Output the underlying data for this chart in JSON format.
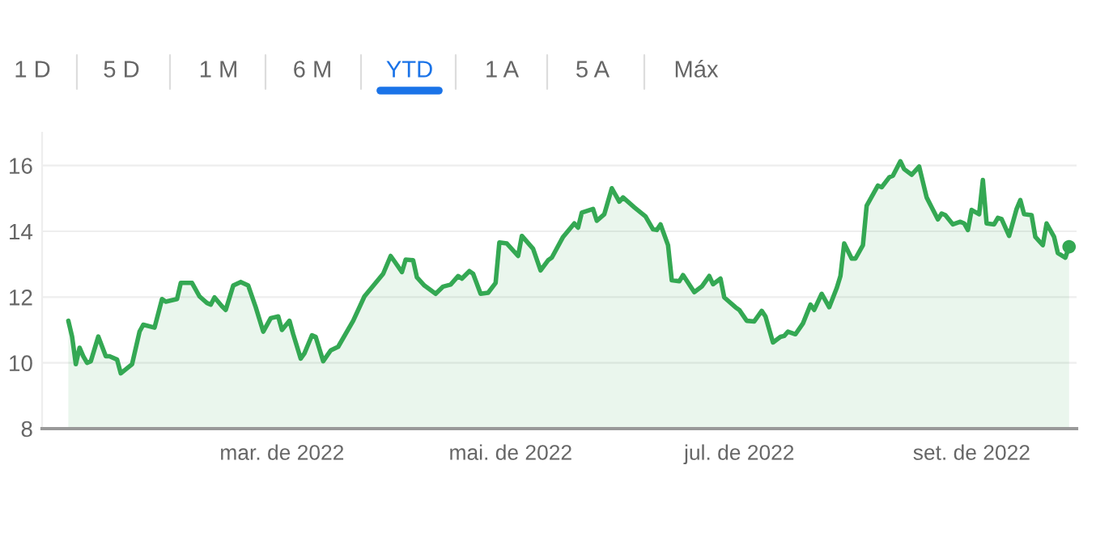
{
  "chart_data": {
    "type": "area",
    "annotations": [
      "1 D",
      "5 D",
      "1 M",
      "6 M",
      "YTD",
      "1 A",
      "5 A",
      "Máx"
    ],
    "x": [
      "2022-01-03",
      "2022-01-04",
      "2022-01-05",
      "2022-01-06",
      "2022-01-07",
      "2022-01-08",
      "2022-01-09",
      "2022-01-11",
      "2022-01-13",
      "2022-01-14",
      "2022-01-16",
      "2022-01-17",
      "2022-01-20",
      "2022-01-22",
      "2022-01-23",
      "2022-01-26",
      "2022-01-28",
      "2022-01-29",
      "2022-02-01",
      "2022-02-02",
      "2022-02-05",
      "2022-02-07",
      "2022-02-09",
      "2022-02-10",
      "2022-02-11",
      "2022-02-13",
      "2022-02-14",
      "2022-02-16",
      "2022-02-18",
      "2022-02-20",
      "2022-02-22",
      "2022-02-24",
      "2022-02-26",
      "2022-02-28",
      "2022-03-01",
      "2022-03-03",
      "2022-03-04",
      "2022-03-06",
      "2022-03-07",
      "2022-03-09",
      "2022-03-10",
      "2022-03-12",
      "2022-03-14",
      "2022-03-16",
      "2022-03-20",
      "2022-03-23",
      "2022-03-28",
      "2022-03-30",
      "2022-03-31",
      "2022-04-02",
      "2022-04-03",
      "2022-04-05",
      "2022-04-06",
      "2022-04-08",
      "2022-04-11",
      "2022-04-13",
      "2022-04-15",
      "2022-04-17",
      "2022-04-18",
      "2022-04-20",
      "2022-04-21",
      "2022-04-23",
      "2022-04-25",
      "2022-04-27",
      "2022-04-28",
      "2022-04-30",
      "2022-05-03",
      "2022-05-04",
      "2022-05-07",
      "2022-05-09",
      "2022-05-11",
      "2022-05-12",
      "2022-05-15",
      "2022-05-18",
      "2022-05-19",
      "2022-05-20",
      "2022-05-23",
      "2022-05-24",
      "2022-05-26",
      "2022-05-28",
      "2022-05-30",
      "2022-05-31",
      "2022-06-03",
      "2022-06-06",
      "2022-06-08",
      "2022-06-09",
      "2022-06-10",
      "2022-06-12",
      "2022-06-13",
      "2022-06-15",
      "2022-06-16",
      "2022-06-19",
      "2022-06-21",
      "2022-06-23",
      "2022-06-24",
      "2022-06-26",
      "2022-06-27",
      "2022-06-30",
      "2022-07-01",
      "2022-07-03",
      "2022-07-05",
      "2022-07-07",
      "2022-07-08",
      "2022-07-10",
      "2022-07-12",
      "2022-07-13",
      "2022-07-14",
      "2022-07-16",
      "2022-07-18",
      "2022-07-20",
      "2022-07-21",
      "2022-07-23",
      "2022-07-25",
      "2022-07-27",
      "2022-07-28",
      "2022-07-29",
      "2022-07-31",
      "2022-08-01",
      "2022-08-03",
      "2022-08-04",
      "2022-08-07",
      "2022-08-08",
      "2022-08-10",
      "2022-08-11",
      "2022-08-13",
      "2022-08-14",
      "2022-08-16",
      "2022-08-18",
      "2022-08-20",
      "2022-08-23",
      "2022-08-24",
      "2022-08-25",
      "2022-08-27",
      "2022-08-29",
      "2022-08-30",
      "2022-08-31",
      "2022-09-01",
      "2022-09-03",
      "2022-09-04",
      "2022-09-05",
      "2022-09-07",
      "2022-09-08",
      "2022-09-09",
      "2022-09-11",
      "2022-09-13",
      "2022-09-14",
      "2022-09-15",
      "2022-09-17",
      "2022-09-18",
      "2022-09-20",
      "2022-09-21",
      "2022-09-23",
      "2022-09-24",
      "2022-09-26",
      "2022-09-27"
    ],
    "series": [
      {
        "color": "#34a853",
        "values": [
          11.28,
          10.8,
          9.96,
          10.46,
          10.2,
          10.0,
          10.05,
          10.8,
          10.2,
          10.2,
          10.1,
          9.68,
          9.96,
          10.95,
          11.16,
          11.07,
          11.94,
          11.86,
          11.94,
          12.43,
          12.43,
          12.02,
          11.82,
          11.77,
          11.99,
          11.72,
          11.61,
          12.35,
          12.46,
          12.35,
          11.69,
          10.95,
          11.36,
          11.41,
          11.0,
          11.28,
          10.87,
          10.13,
          10.29,
          10.84,
          10.79,
          10.05,
          10.38,
          10.49,
          11.28,
          12.02,
          12.71,
          13.25,
          13.09,
          12.76,
          13.14,
          13.12,
          12.6,
          12.35,
          12.1,
          12.32,
          12.38,
          12.64,
          12.56,
          12.79,
          12.71,
          12.1,
          12.13,
          12.43,
          13.66,
          13.63,
          13.25,
          13.86,
          13.47,
          12.81,
          13.12,
          13.2,
          13.83,
          14.24,
          14.11,
          14.57,
          14.68,
          14.32,
          14.52,
          15.31,
          14.9,
          15.03,
          14.73,
          14.45,
          14.06,
          14.04,
          14.21,
          13.58,
          12.51,
          12.48,
          12.67,
          12.15,
          12.32,
          12.64,
          12.39,
          12.56,
          11.99,
          11.69,
          11.61,
          11.28,
          11.26,
          11.58,
          11.41,
          10.62,
          10.79,
          10.82,
          10.95,
          10.87,
          11.2,
          11.77,
          11.61,
          12.1,
          11.69,
          12.27,
          12.64,
          13.63,
          13.17,
          13.17,
          13.58,
          14.78,
          15.39,
          15.34,
          15.64,
          15.69,
          16.13,
          15.89,
          15.72,
          15.97,
          15.03,
          14.36,
          14.54,
          14.49,
          14.21,
          14.29,
          14.24,
          14.04,
          14.65,
          14.52,
          15.56,
          14.24,
          14.21,
          14.41,
          14.37,
          13.86,
          14.68,
          14.95,
          14.52,
          14.49,
          13.83,
          13.58,
          14.24,
          13.83,
          13.34,
          13.2,
          13.53
        ]
      }
    ],
    "xlim": [
      "2021-12-27",
      "2022-09-29"
    ],
    "xticks": [
      {
        "value": "2022-03-01",
        "label": "mar. de 2022"
      },
      {
        "value": "2022-05-01",
        "label": "mai. de 2022"
      },
      {
        "value": "2022-07-01",
        "label": "jul. de 2022"
      },
      {
        "value": "2022-09-01",
        "label": "set. de 2022"
      }
    ],
    "ylim": [
      8,
      17
    ],
    "yticks": [
      8,
      10,
      12,
      14,
      16
    ],
    "grid": "y"
  }
}
